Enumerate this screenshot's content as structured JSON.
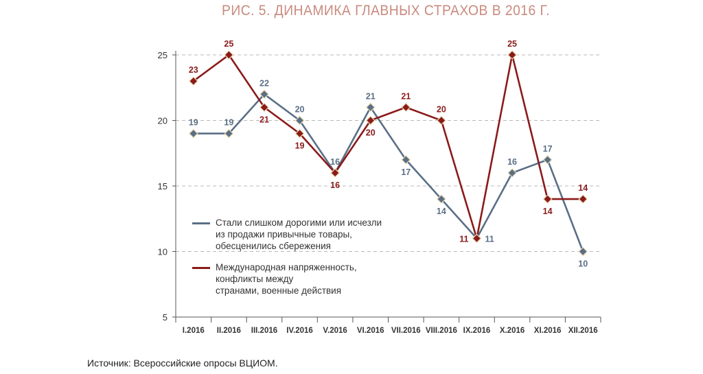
{
  "chart_data": {
    "type": "line",
    "title": "РИС. 5. ДИНАМИКА ГЛАВНЫХ СТРАХОВ В 2016 Г.",
    "categories": [
      "I.2016",
      "II.2016",
      "III.2016",
      "IV.2016",
      "V.2016",
      "VI.2016",
      "VII.2016",
      "VIII.2016",
      "IX.2016",
      "X.2016",
      "XI.2016",
      "XII.2016"
    ],
    "ylim": [
      5,
      25
    ],
    "yticks": [
      5,
      10,
      15,
      20,
      25
    ],
    "grid": true,
    "series": [
      {
        "name": "Стали слишком дорогими или исчезли из продажи привычные товары, обесценились сбережения",
        "legend_lines": [
          "Стали слишком дорогими или исчезли",
          "из продажи привычные товары,",
          "обесценились сбережения"
        ],
        "color": "#5a6f86",
        "values": [
          19,
          19,
          22,
          20,
          16,
          21,
          17,
          14,
          11,
          16,
          17,
          10
        ]
      },
      {
        "name": "Международная напряженность, конфликты между странами, военные действия",
        "legend_lines": [
          "Международная напряженность,",
          "конфликты между",
          "странами, военные действия"
        ],
        "color": "#8b1a1a",
        "values": [
          23,
          25,
          21,
          19,
          16,
          20,
          21,
          20,
          11,
          25,
          14,
          14
        ]
      }
    ]
  },
  "source": "Источник: Всероссийские опросы ВЦИОМ."
}
